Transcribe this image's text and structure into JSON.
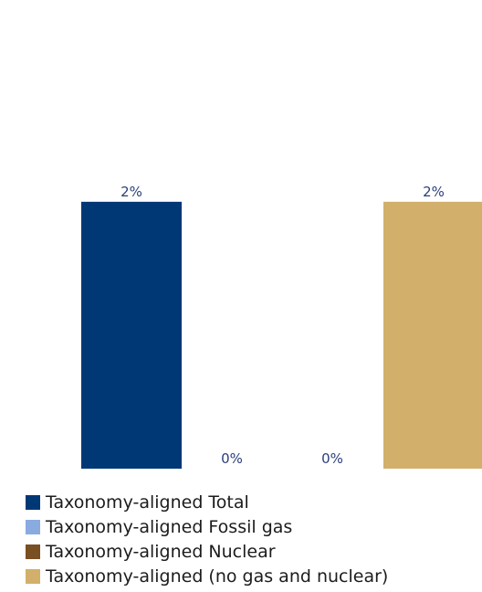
{
  "chart_data": {
    "type": "bar",
    "categories": [
      "Taxonomy-aligned Total",
      "Taxonomy-aligned Fossil gas",
      "Taxonomy-aligned Nuclear",
      "Taxonomy-aligned (no gas and nuclear)"
    ],
    "values": [
      2,
      0,
      0,
      2
    ],
    "data_labels": [
      "2%",
      "0%",
      "0%",
      "2%"
    ],
    "colors": [
      "#003876",
      "#8aabe0",
      "#7a4f22",
      "#d2b06b"
    ],
    "ylim": [
      0,
      2.8
    ],
    "title": "",
    "xlabel": "",
    "ylabel": "",
    "grid": false,
    "legend_position": "bottom-left"
  },
  "legend": {
    "items": [
      {
        "label": "Taxonomy-aligned Total",
        "color": "#003876"
      },
      {
        "label": "Taxonomy-aligned Fossil gas",
        "color": "#8aabe0"
      },
      {
        "label": "Taxonomy-aligned Nuclear",
        "color": "#7a4f22"
      },
      {
        "label": "Taxonomy-aligned (no gas and nuclear)",
        "color": "#d2b06b"
      }
    ]
  },
  "style": {
    "label_color": "#2b3f7a"
  }
}
